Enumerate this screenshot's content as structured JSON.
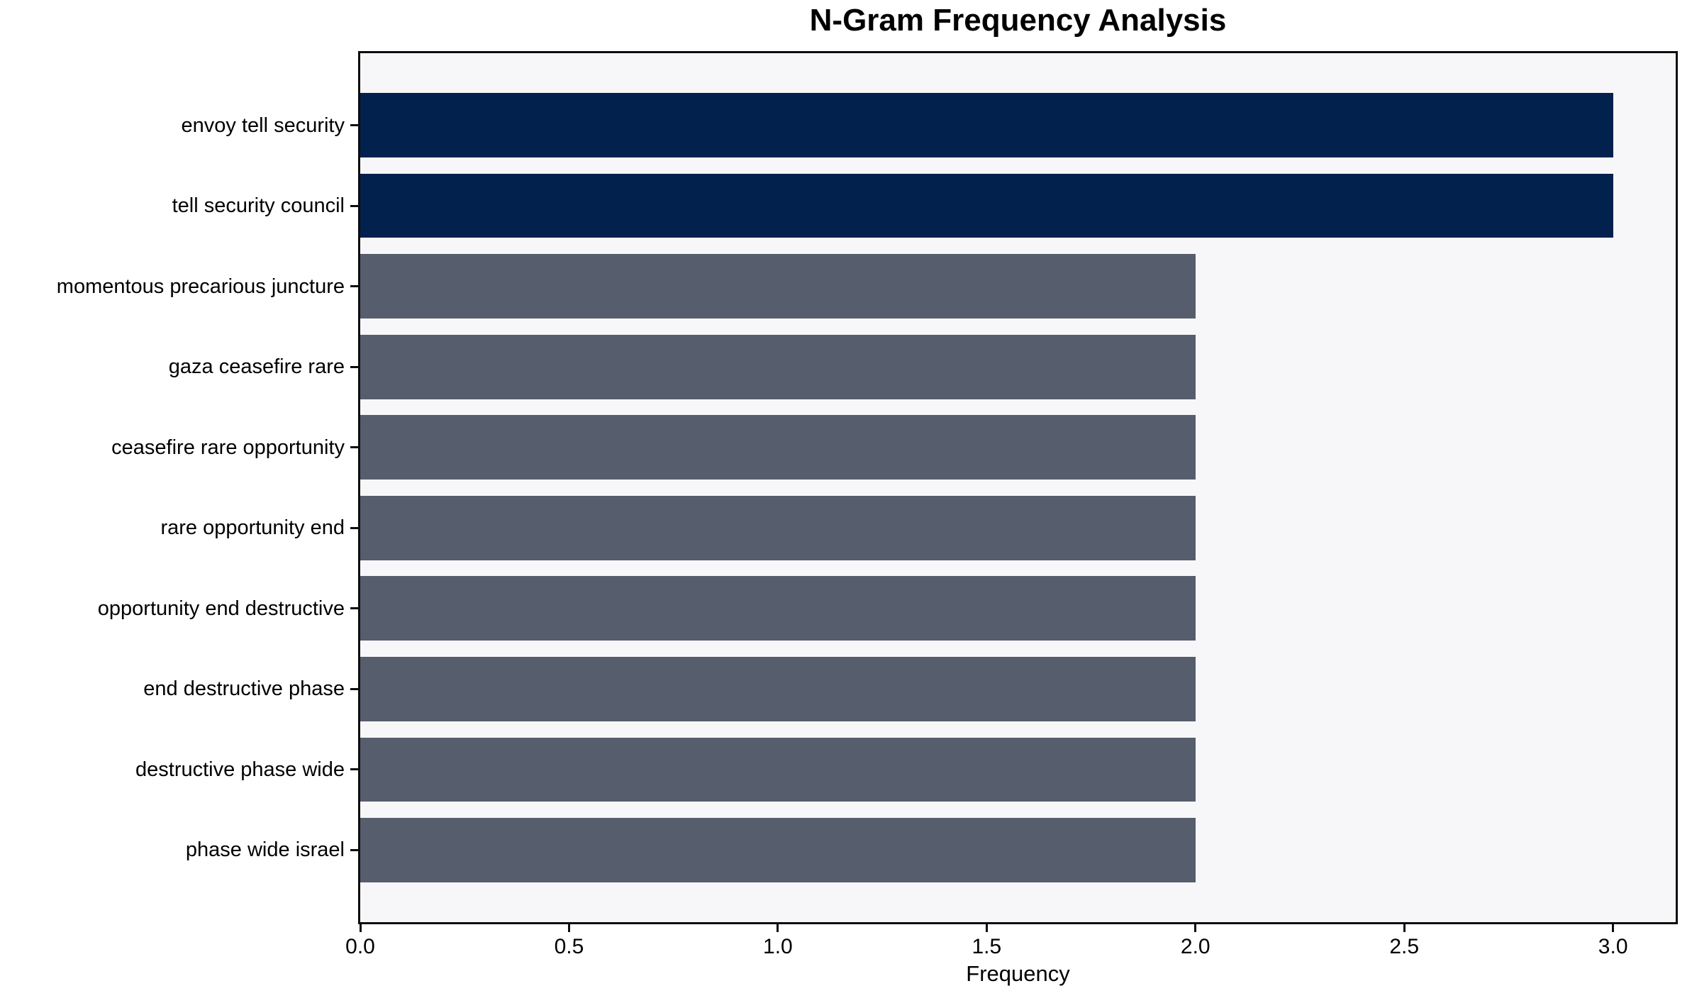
{
  "chart_data": {
    "type": "bar",
    "orientation": "horizontal",
    "title": "N-Gram Frequency Analysis",
    "xlabel": "Frequency",
    "ylabel": "",
    "categories": [
      "envoy tell security",
      "tell security council",
      "momentous precarious juncture",
      "gaza ceasefire rare",
      "ceasefire rare opportunity",
      "rare opportunity end",
      "opportunity end destructive",
      "end destructive phase",
      "destructive phase wide",
      "phase wide israel"
    ],
    "values": [
      3.0,
      3.0,
      2.0,
      2.0,
      2.0,
      2.0,
      2.0,
      2.0,
      2.0,
      2.0
    ],
    "bar_colors": [
      "#02214d",
      "#02214d",
      "#565d6d",
      "#565d6d",
      "#565d6d",
      "#565d6d",
      "#565d6d",
      "#565d6d",
      "#565d6d",
      "#565d6d"
    ],
    "x_tick_labels": [
      "0.0",
      "0.5",
      "1.0",
      "1.5",
      "2.0",
      "2.5",
      "3.0"
    ],
    "x_tick_values": [
      0,
      0.5,
      1.0,
      1.5,
      2.0,
      2.5,
      3.0
    ],
    "xlim": [
      0,
      3.15
    ],
    "grid": false,
    "legend": null,
    "plot_background": "#f7f7f9",
    "figure_background": "#ffffff",
    "highlight_color": "#02214d",
    "base_color": "#565d6d"
  }
}
